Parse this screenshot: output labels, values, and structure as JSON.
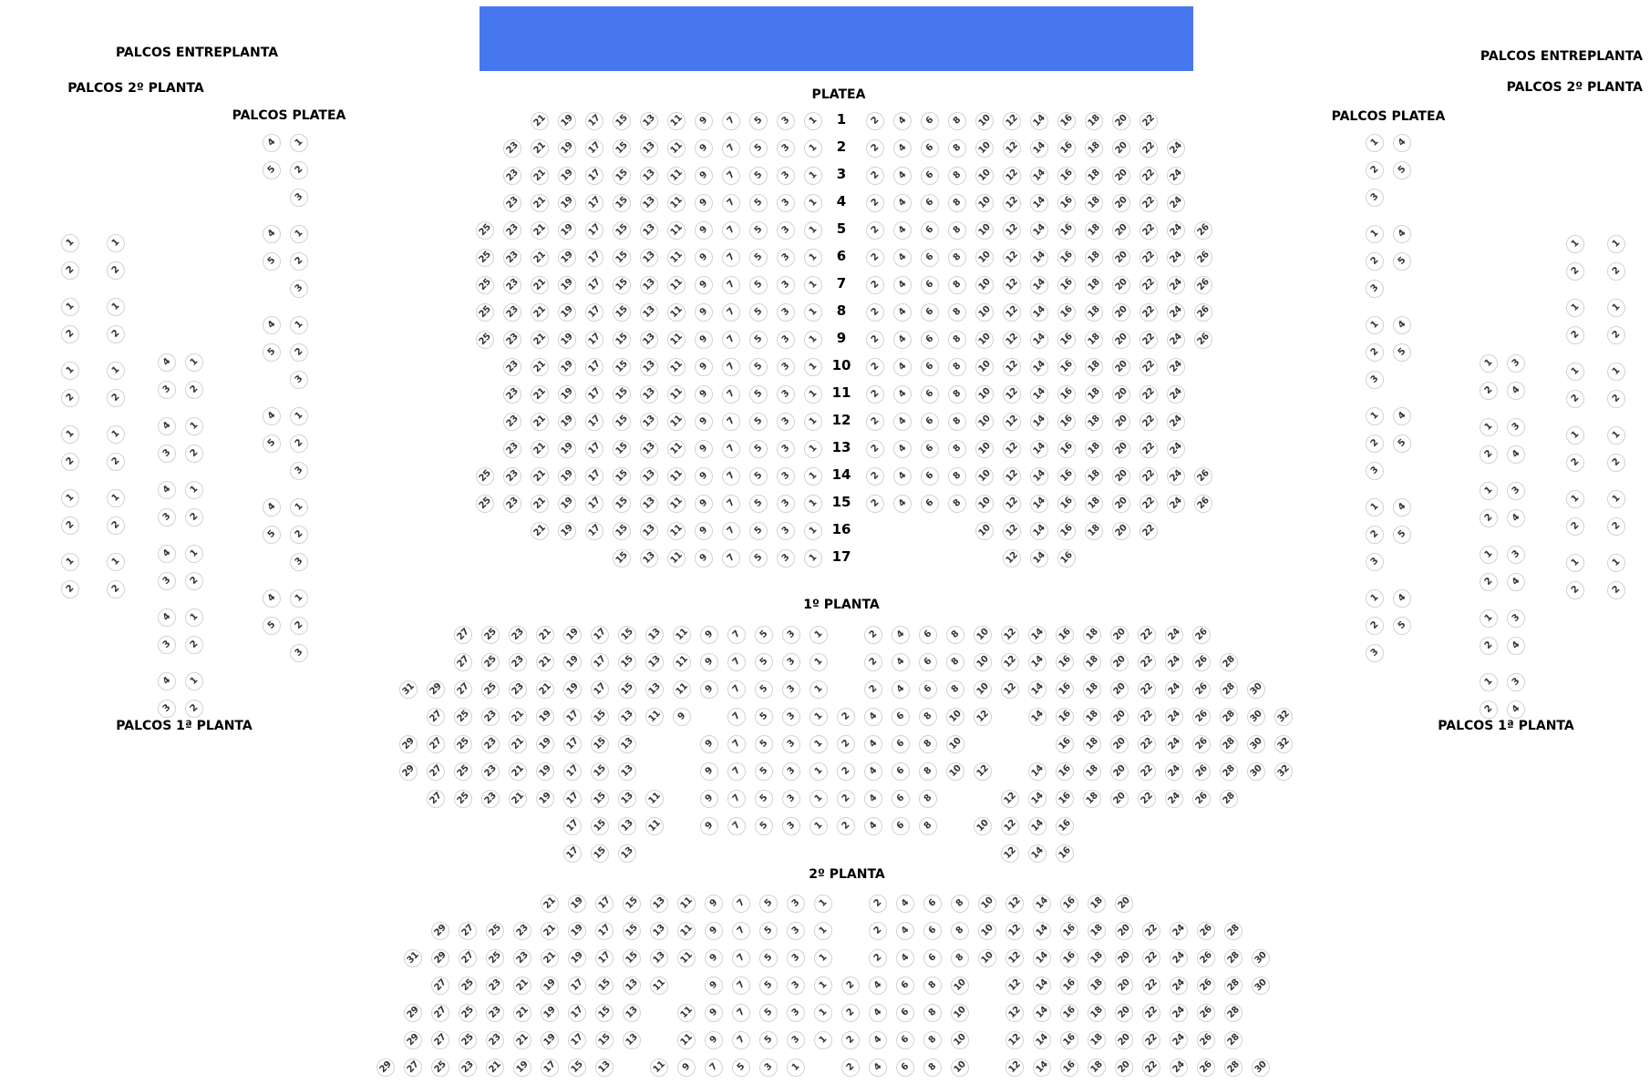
{
  "stage": {
    "color": "#4677ee"
  },
  "labels": {
    "palcos_entreplanta_left": "PALCOS ENTREPLANTA",
    "palcos_2_planta_left": "PALCOS 2º PLANTA",
    "palcos_platea_left": "PALCOS PLATEA",
    "palcos_1_planta_left": "PALCOS 1ª PLANTA",
    "palcos_entreplanta_right": "PALCOS ENTREPLANTA",
    "palcos_2_planta_right": "PALCOS 2º PLANTA",
    "palcos_platea_right": "PALCOS PLATEA",
    "palcos_1_planta_right": "PALCOS 1ª PLANTA",
    "platea": "PLATEA",
    "planta_1": "1º PLANTA",
    "planta_2": "2º PLANTA"
  },
  "platea": {
    "rows": [
      {
        "label": "1",
        "left": [
          21,
          19,
          17,
          15,
          13,
          11,
          9,
          7,
          5,
          3,
          1
        ],
        "right": [
          2,
          4,
          6,
          8,
          10,
          12,
          14,
          16,
          18,
          20,
          22
        ]
      },
      {
        "label": "2",
        "left": [
          23,
          21,
          19,
          17,
          15,
          13,
          11,
          9,
          7,
          5,
          3,
          1
        ],
        "right": [
          2,
          4,
          6,
          8,
          10,
          12,
          14,
          16,
          18,
          20,
          22,
          24
        ]
      },
      {
        "label": "3",
        "left": [
          23,
          21,
          19,
          17,
          15,
          13,
          11,
          9,
          7,
          5,
          3,
          1
        ],
        "right": [
          2,
          4,
          6,
          8,
          10,
          12,
          14,
          16,
          18,
          20,
          22,
          24
        ]
      },
      {
        "label": "4",
        "left": [
          23,
          21,
          19,
          17,
          15,
          13,
          11,
          9,
          7,
          5,
          3,
          1
        ],
        "right": [
          2,
          4,
          6,
          8,
          10,
          12,
          14,
          16,
          18,
          20,
          22,
          24
        ]
      },
      {
        "label": "5",
        "left": [
          25,
          23,
          21,
          19,
          17,
          15,
          13,
          11,
          9,
          7,
          5,
          3,
          1
        ],
        "right": [
          2,
          4,
          6,
          8,
          10,
          12,
          14,
          16,
          18,
          20,
          22,
          24,
          26
        ]
      },
      {
        "label": "6",
        "left": [
          25,
          23,
          21,
          19,
          17,
          15,
          13,
          11,
          9,
          7,
          5,
          3,
          1
        ],
        "right": [
          2,
          4,
          6,
          8,
          10,
          12,
          14,
          16,
          18,
          20,
          22,
          24,
          26
        ]
      },
      {
        "label": "7",
        "left": [
          25,
          23,
          21,
          19,
          17,
          15,
          13,
          11,
          9,
          7,
          5,
          3,
          1
        ],
        "right": [
          2,
          4,
          6,
          8,
          10,
          12,
          14,
          16,
          18,
          20,
          22,
          24,
          26
        ]
      },
      {
        "label": "8",
        "left": [
          25,
          23,
          21,
          19,
          17,
          15,
          13,
          11,
          9,
          7,
          5,
          3,
          1
        ],
        "right": [
          2,
          4,
          6,
          8,
          10,
          12,
          14,
          16,
          18,
          20,
          22,
          24,
          26
        ]
      },
      {
        "label": "9",
        "left": [
          25,
          23,
          21,
          19,
          17,
          15,
          13,
          11,
          9,
          7,
          5,
          3,
          1
        ],
        "right": [
          2,
          4,
          6,
          8,
          10,
          12,
          14,
          16,
          18,
          20,
          22,
          24,
          26
        ]
      },
      {
        "label": "10",
        "left": [
          23,
          21,
          19,
          17,
          15,
          13,
          11,
          9,
          7,
          5,
          3,
          1
        ],
        "right": [
          2,
          4,
          6,
          8,
          10,
          12,
          14,
          16,
          18,
          20,
          22,
          24
        ]
      },
      {
        "label": "11",
        "left": [
          23,
          21,
          19,
          17,
          15,
          13,
          11,
          9,
          7,
          5,
          3,
          1
        ],
        "right": [
          2,
          4,
          6,
          8,
          10,
          12,
          14,
          16,
          18,
          20,
          22,
          24
        ]
      },
      {
        "label": "12",
        "left": [
          23,
          21,
          19,
          17,
          15,
          13,
          11,
          9,
          7,
          5,
          3,
          1
        ],
        "right": [
          2,
          4,
          6,
          8,
          10,
          12,
          14,
          16,
          18,
          20,
          22,
          24
        ]
      },
      {
        "label": "13",
        "left": [
          23,
          21,
          19,
          17,
          15,
          13,
          11,
          9,
          7,
          5,
          3,
          1
        ],
        "right": [
          2,
          4,
          6,
          8,
          10,
          12,
          14,
          16,
          18,
          20,
          22,
          24
        ]
      },
      {
        "label": "14",
        "left": [
          25,
          23,
          21,
          19,
          17,
          15,
          13,
          11,
          9,
          7,
          5,
          3,
          1
        ],
        "right": [
          2,
          4,
          6,
          8,
          10,
          12,
          14,
          16,
          18,
          20,
          22,
          24,
          26
        ]
      },
      {
        "label": "15",
        "left": [
          25,
          23,
          21,
          19,
          17,
          15,
          13,
          11,
          9,
          7,
          5,
          3,
          1
        ],
        "right": [
          2,
          4,
          6,
          8,
          10,
          12,
          14,
          16,
          18,
          20,
          22,
          24,
          26
        ]
      },
      {
        "label": "16",
        "left": [
          21,
          19,
          17,
          15,
          13,
          11,
          9,
          7,
          5,
          3,
          1
        ],
        "right": [
          10,
          12,
          14,
          16,
          18,
          20,
          22
        ]
      },
      {
        "label": "17",
        "left": [
          15,
          13,
          11,
          9,
          7,
          5,
          3,
          1
        ],
        "right": [
          12,
          14,
          16
        ]
      }
    ]
  },
  "planta_1": {
    "rows": [
      [
        null,
        null,
        27,
        25,
        23,
        21,
        19,
        17,
        15,
        13,
        11,
        9,
        7,
        5,
        3,
        1,
        null,
        2,
        4,
        6,
        8,
        10,
        12,
        14,
        16,
        18,
        20,
        22,
        24,
        26
      ],
      [
        null,
        null,
        27,
        25,
        23,
        21,
        19,
        17,
        15,
        13,
        11,
        9,
        7,
        5,
        3,
        1,
        null,
        2,
        4,
        6,
        8,
        10,
        12,
        14,
        16,
        18,
        20,
        22,
        24,
        26,
        28
      ],
      [
        31,
        29,
        27,
        25,
        23,
        21,
        19,
        17,
        15,
        13,
        11,
        9,
        7,
        5,
        3,
        1,
        null,
        2,
        4,
        6,
        8,
        10,
        12,
        14,
        16,
        18,
        20,
        22,
        24,
        26,
        28,
        30
      ],
      [
        null,
        27,
        25,
        23,
        21,
        19,
        17,
        15,
        13,
        11,
        9,
        null,
        7,
        5,
        3,
        1,
        2,
        4,
        6,
        8,
        10,
        12,
        null,
        14,
        16,
        18,
        20,
        22,
        24,
        26,
        28,
        30,
        32
      ],
      [
        29,
        27,
        25,
        23,
        21,
        19,
        17,
        15,
        13,
        null,
        null,
        9,
        7,
        5,
        3,
        1,
        2,
        4,
        6,
        8,
        10,
        null,
        null,
        null,
        16,
        18,
        20,
        22,
        24,
        26,
        28,
        30,
        32
      ],
      [
        29,
        27,
        25,
        23,
        21,
        19,
        17,
        15,
        13,
        null,
        null,
        9,
        7,
        5,
        3,
        1,
        2,
        4,
        6,
        8,
        10,
        12,
        null,
        14,
        16,
        18,
        20,
        22,
        24,
        26,
        28,
        30,
        32
      ],
      [
        null,
        27,
        25,
        23,
        21,
        19,
        17,
        15,
        13,
        11,
        null,
        9,
        7,
        5,
        3,
        1,
        2,
        4,
        6,
        8,
        null,
        null,
        12,
        14,
        16,
        18,
        20,
        22,
        24,
        26,
        28
      ],
      [
        null,
        null,
        null,
        null,
        null,
        null,
        17,
        15,
        13,
        11,
        null,
        9,
        7,
        5,
        3,
        1,
        2,
        4,
        6,
        8,
        null,
        10,
        12,
        14,
        16
      ],
      [
        null,
        null,
        null,
        null,
        null,
        null,
        17,
        15,
        13,
        null,
        null,
        null,
        null,
        null,
        null,
        null,
        null,
        null,
        null,
        null,
        null,
        null,
        12,
        14,
        16
      ]
    ]
  },
  "planta_2": {
    "rows": [
      [
        null,
        null,
        null,
        null,
        null,
        null,
        21,
        19,
        17,
        15,
        13,
        11,
        9,
        7,
        5,
        3,
        1,
        null,
        2,
        4,
        6,
        8,
        10,
        12,
        14,
        16,
        18,
        20
      ],
      [
        null,
        null,
        29,
        27,
        25,
        23,
        21,
        19,
        17,
        15,
        13,
        11,
        9,
        7,
        5,
        3,
        1,
        null,
        2,
        4,
        6,
        8,
        10,
        12,
        14,
        16,
        18,
        20,
        22,
        24,
        26,
        28
      ],
      [
        null,
        31,
        29,
        27,
        25,
        23,
        21,
        19,
        17,
        15,
        13,
        11,
        9,
        7,
        5,
        3,
        1,
        null,
        2,
        4,
        6,
        8,
        10,
        12,
        14,
        16,
        18,
        20,
        22,
        24,
        26,
        28,
        30
      ],
      [
        null,
        null,
        27,
        25,
        23,
        21,
        19,
        17,
        15,
        13,
        11,
        null,
        9,
        7,
        5,
        3,
        1,
        2,
        4,
        6,
        8,
        10,
        null,
        12,
        14,
        16,
        18,
        20,
        22,
        24,
        26,
        28,
        30
      ],
      [
        null,
        29,
        27,
        25,
        23,
        21,
        19,
        17,
        15,
        13,
        null,
        11,
        9,
        7,
        5,
        3,
        1,
        2,
        4,
        6,
        8,
        10,
        null,
        12,
        14,
        16,
        18,
        20,
        22,
        24,
        26,
        28
      ],
      [
        null,
        29,
        27,
        25,
        23,
        21,
        19,
        17,
        15,
        13,
        null,
        11,
        9,
        7,
        5,
        3,
        1,
        2,
        4,
        6,
        8,
        10,
        null,
        12,
        14,
        16,
        18,
        20,
        22,
        24,
        26,
        28
      ],
      [
        29,
        27,
        25,
        23,
        21,
        19,
        17,
        15,
        13,
        null,
        11,
        9,
        7,
        5,
        3,
        1,
        null,
        2,
        4,
        6,
        8,
        10,
        null,
        12,
        14,
        16,
        18,
        20,
        22,
        24,
        26,
        28,
        30
      ]
    ]
  },
  "palcos": {
    "platea_left": {
      "count": 6,
      "layout": [
        [
          4,
          1
        ],
        [
          5,
          2
        ],
        [
          null,
          3
        ]
      ]
    },
    "platea_right": {
      "count": 6,
      "layout": [
        [
          1,
          4
        ],
        [
          2,
          5
        ],
        [
          3,
          null
        ]
      ]
    },
    "planta_1_left": {
      "count": 6,
      "layout": [
        [
          4,
          1
        ],
        [
          3,
          2
        ]
      ]
    },
    "planta_1_right": {
      "count": 6,
      "layout": [
        [
          1,
          3
        ],
        [
          2,
          4
        ]
      ]
    },
    "planta_2_left": {
      "count": 6,
      "layout": [
        [
          1,
          1
        ],
        [
          2,
          2
        ]
      ]
    },
    "planta_2_right": {
      "count": 6,
      "layout": [
        [
          1,
          1
        ],
        [
          2,
          2
        ]
      ]
    }
  }
}
